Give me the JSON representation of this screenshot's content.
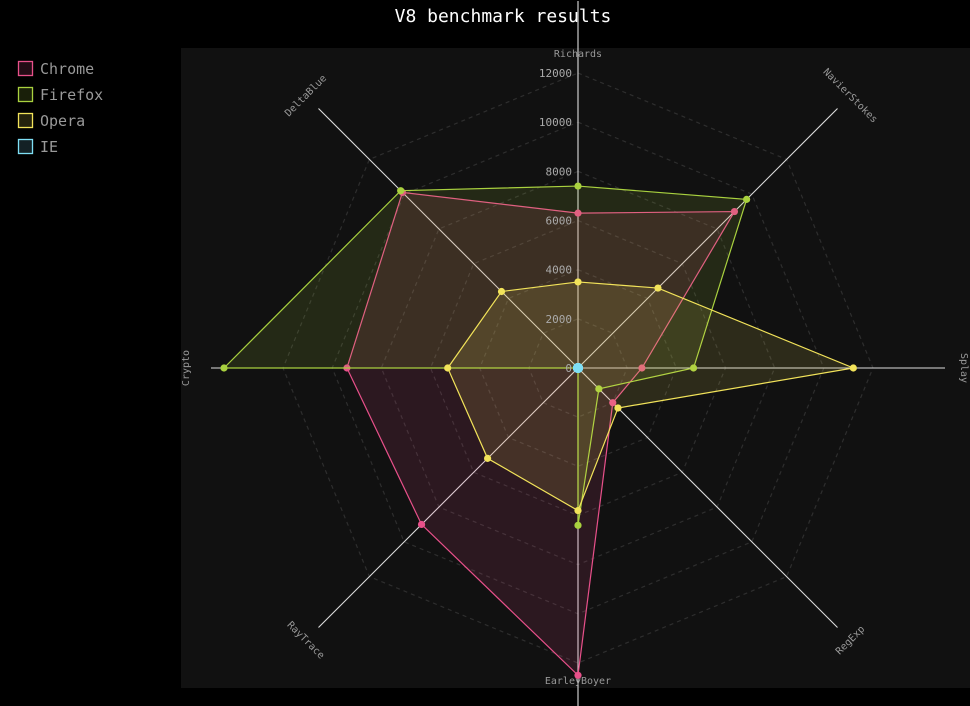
{
  "chart_data": {
    "type": "radar",
    "title": "V8 benchmark results",
    "axes": [
      "Richards",
      "NavierStokes",
      "Splay",
      "RegExp",
      "EarleyBoyer",
      "RayTrace",
      "Crypto",
      "DeltaBlue"
    ],
    "ylim": [
      0,
      12000
    ],
    "ticks": [
      0,
      2000,
      4000,
      6000,
      8000,
      10000,
      12000
    ],
    "tick_labels": [
      "0",
      "2000",
      "4000",
      "6000",
      "8000",
      "10000",
      "12000"
    ],
    "grid": true,
    "legend_position": "top-left",
    "series": [
      {
        "name": "Chrome",
        "color": "#e8508a",
        "values": [
          6300,
          9000,
          2600,
          2000,
          12500,
          9000,
          9400,
          10100
        ]
      },
      {
        "name": "Firefox",
        "color": "#a9d13f",
        "values": [
          7400,
          9700,
          4700,
          1200,
          6400,
          0,
          14400,
          10200
        ]
      },
      {
        "name": "Opera",
        "color": "#f2e35a",
        "values": [
          3500,
          4600,
          11200,
          2300,
          5800,
          5200,
          5300,
          4400
        ]
      },
      {
        "name": "IE",
        "color": "#7fdff5",
        "values": [
          0,
          0,
          0,
          0,
          0,
          0,
          0,
          0
        ]
      }
    ]
  }
}
